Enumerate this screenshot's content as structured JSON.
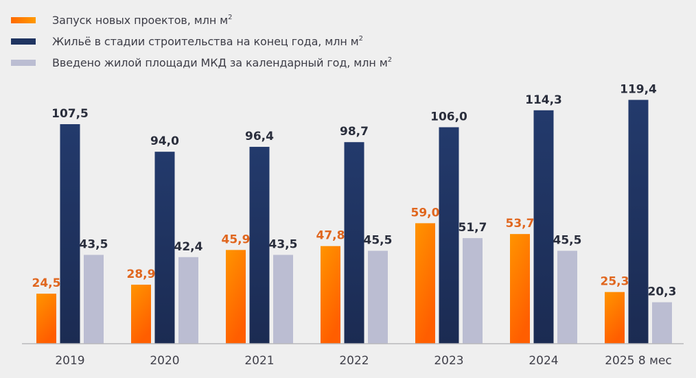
{
  "chart_data": {
    "type": "bar",
    "title": "",
    "xlabel": "",
    "ylabel": "",
    "ylim": [
      0,
      120
    ],
    "grid": false,
    "legend_position": "top-left",
    "categories": [
      "2019",
      "2020",
      "2021",
      "2022",
      "2023",
      "2024",
      "2025 8 мес"
    ],
    "series": [
      {
        "name": "Запуск новых проектов, млн м",
        "unit_sup": "2",
        "color": "#ff7a00",
        "label_color": "#e0661e",
        "values": [
          24.5,
          28.9,
          45.9,
          47.8,
          59.0,
          53.7,
          25.3
        ],
        "labels": [
          "24,5",
          "28,9",
          "45,9",
          "47,8",
          "59,0",
          "53,7",
          "25,3"
        ]
      },
      {
        "name": "Жильё в стадии строительства на конец года, млн м",
        "unit_sup": "2",
        "color": "#1f3461",
        "label_color": "#2a2e3c",
        "values": [
          107.5,
          94.0,
          96.4,
          98.7,
          106.0,
          114.3,
          119.4
        ],
        "labels": [
          "107,5",
          "94,0",
          "96,4",
          "98,7",
          "106,0",
          "114,3",
          "119,4"
        ]
      },
      {
        "name": "Введено жилой площади МКД за календарный год, млн м",
        "unit_sup": "2",
        "color": "#bbbdd2",
        "label_color": "#2a2e3c",
        "values": [
          43.5,
          42.4,
          43.5,
          45.5,
          51.7,
          45.5,
          20.3
        ],
        "labels": [
          "43,5",
          "42,4",
          "43,5",
          "45,5",
          "51,7",
          "45,5",
          "20,3"
        ]
      }
    ]
  }
}
